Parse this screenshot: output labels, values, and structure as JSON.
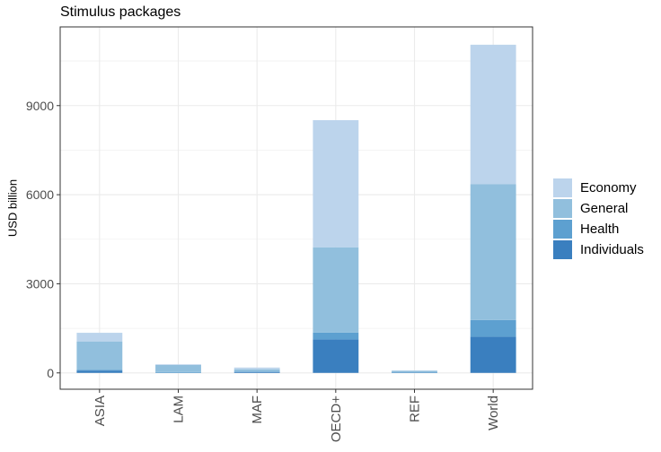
{
  "chart_data": {
    "type": "bar",
    "stacked": true,
    "title": "Stimulus packages",
    "xlabel": "",
    "ylabel": "USD billion",
    "categories": [
      "ASIA",
      "LAM",
      "MAF",
      "OECD+",
      "REF",
      "World"
    ],
    "series": [
      {
        "name": "Individuals",
        "color": "#3A7FBF",
        "values": [
          80,
          0,
          30,
          1130,
          15,
          1220
        ]
      },
      {
        "name": "Health",
        "color": "#5DA0D0",
        "values": [
          20,
          30,
          20,
          230,
          5,
          560
        ]
      },
      {
        "name": "General",
        "color": "#91BFDD",
        "values": [
          960,
          240,
          70,
          2870,
          50,
          4570
        ]
      },
      {
        "name": "Economy",
        "color": "#BCD4EC",
        "values": [
          290,
          20,
          60,
          4280,
          10,
          4700
        ]
      }
    ],
    "legend_order": [
      "Economy",
      "General",
      "Health",
      "Individuals"
    ],
    "yticks": [
      0,
      3000,
      6000,
      9000
    ],
    "ylim": [
      -550,
      11650
    ],
    "grid": true,
    "legend_position": "right"
  }
}
